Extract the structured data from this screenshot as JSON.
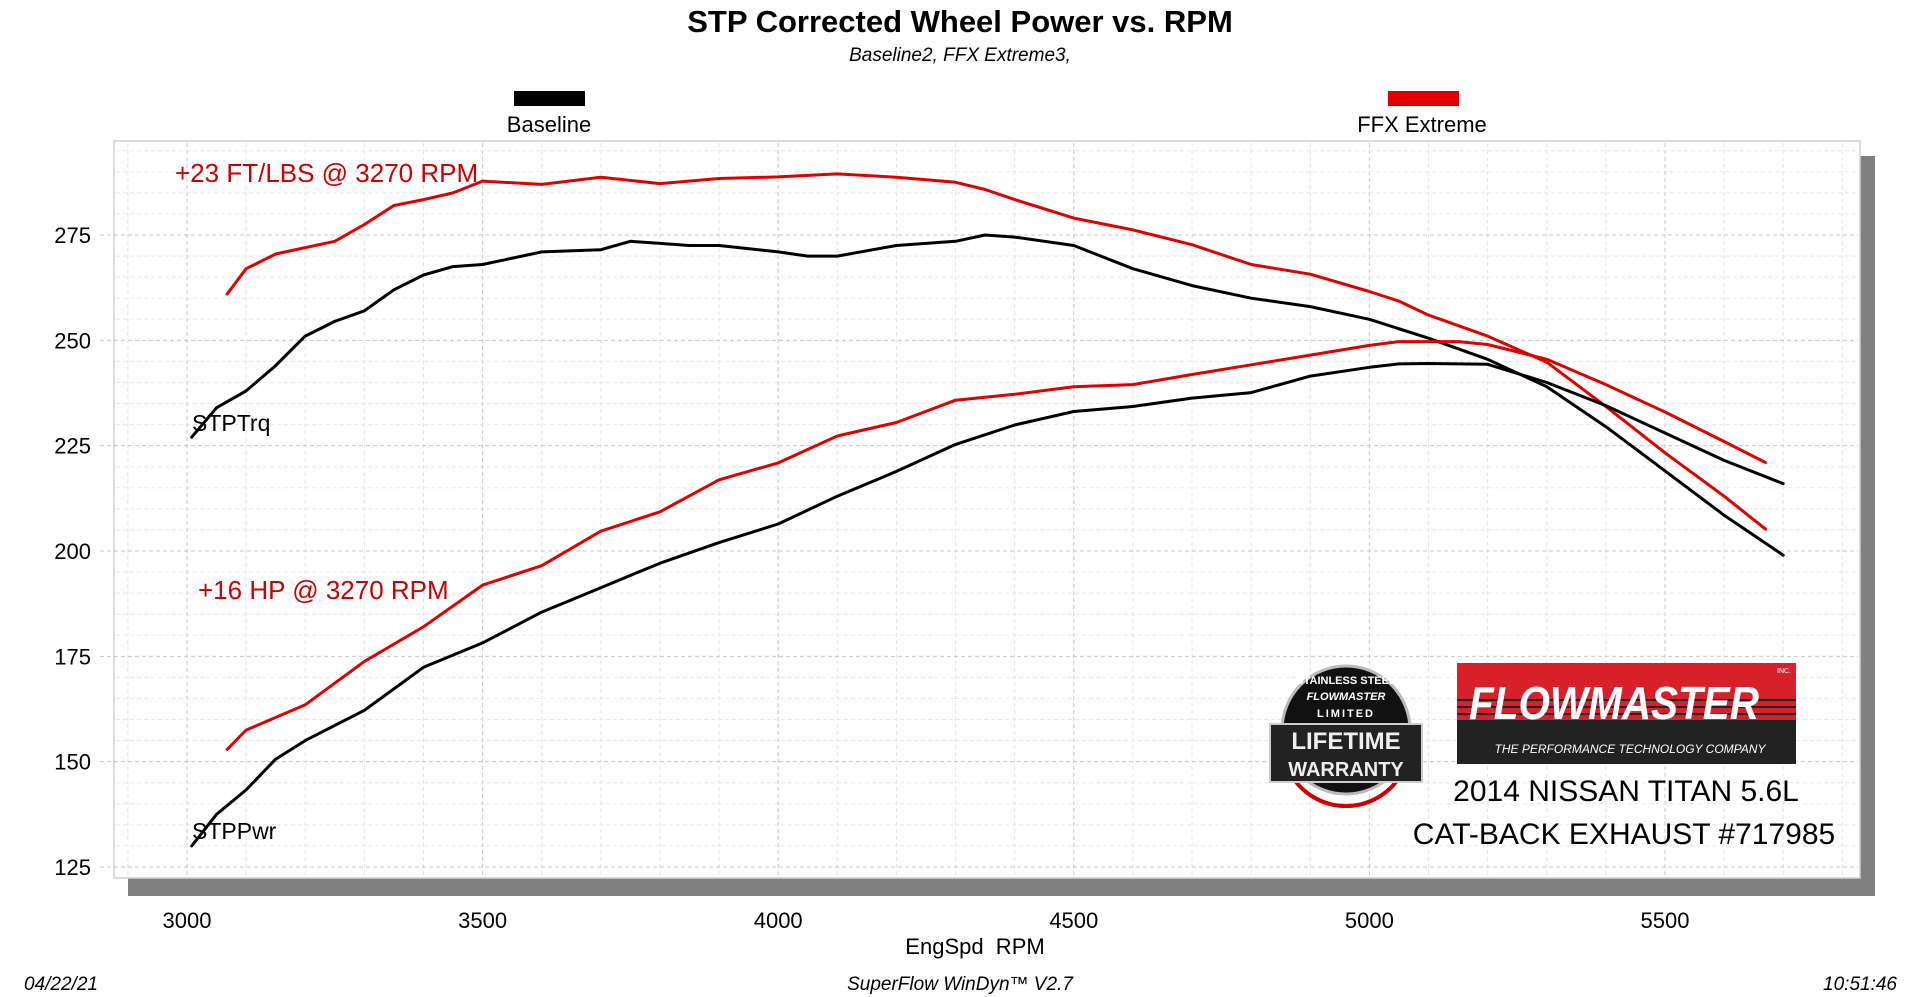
{
  "chart_data": {
    "type": "line",
    "title": "STP Corrected Wheel Power vs. RPM",
    "subtitle": "Baseline2, FFX Extreme3,",
    "xlabel": "EngSpd  RPM",
    "ylabel": "",
    "xlim": [
      2880,
      5850
    ],
    "ylim": [
      120,
      299
    ],
    "xticks": [
      3000,
      3500,
      4000,
      4500,
      5000,
      5500
    ],
    "yticks": [
      125,
      150,
      175,
      200,
      225,
      250,
      275
    ],
    "grid": true,
    "legend_placement": "top",
    "legend": [
      {
        "name": "Baseline",
        "color": "#000000"
      },
      {
        "name": "FFX Extreme",
        "color": "#e00000"
      }
    ],
    "curve_labels": {
      "torque": "STPTrq",
      "power": "STPPwr"
    },
    "series": [
      {
        "legend": "Baseline",
        "curve": "STPTrq",
        "color": "#000000",
        "x": [
          3008,
          3050,
          3100,
          3150,
          3200,
          3250,
          3300,
          3350,
          3400,
          3450,
          3500,
          3600,
          3700,
          3750,
          3800,
          3850,
          3900,
          4000,
          4050,
          4100,
          4200,
          4300,
          4350,
          4400,
          4500,
          4600,
          4700,
          4800,
          4900,
          5000,
          5100,
          5200,
          5300,
          5400,
          5500,
          5600,
          5700
        ],
        "y": [
          227,
          234,
          238,
          244,
          251,
          254.5,
          257,
          262,
          265.5,
          267.5,
          268,
          271,
          271.5,
          273.5,
          273,
          272.5,
          272.5,
          271,
          270,
          270,
          272.5,
          273.5,
          275,
          274.5,
          272.5,
          267,
          263,
          260,
          258,
          255,
          250.5,
          245.5,
          239,
          229.5,
          219,
          208.5,
          199
        ]
      },
      {
        "legend": "FFX Extreme",
        "curve": "STPTrq",
        "color": "#e00000",
        "x": [
          3068,
          3100,
          3150,
          3200,
          3250,
          3300,
          3350,
          3400,
          3450,
          3500,
          3600,
          3700,
          3800,
          3900,
          4000,
          4100,
          4200,
          4300,
          4350,
          4400,
          4500,
          4600,
          4700,
          4800,
          4900,
          5000,
          5050,
          5100,
          5200,
          5300,
          5400,
          5500,
          5600,
          5670
        ],
        "y": [
          261,
          267,
          270.5,
          272,
          273.5,
          277.5,
          282,
          283.4,
          285,
          287.8,
          287,
          288.7,
          287.2,
          288.4,
          288.8,
          289.5,
          288.7,
          287.5,
          285.8,
          283.4,
          279,
          276.2,
          272.7,
          268,
          265.7,
          261.6,
          259.3,
          256,
          251,
          244.8,
          234.3,
          223.3,
          213,
          205.2
        ]
      },
      {
        "legend": "Baseline",
        "curve": "STPPwr",
        "color": "#000000",
        "x": [
          3008,
          3050,
          3100,
          3150,
          3200,
          3300,
          3400,
          3500,
          3600,
          3700,
          3800,
          3900,
          4000,
          4100,
          4200,
          4300,
          4400,
          4500,
          4600,
          4700,
          4800,
          4900,
          5000,
          5050,
          5100,
          5200,
          5300,
          5400,
          5500,
          5600,
          5700
        ],
        "y": [
          130,
          137.5,
          143.3,
          150.6,
          155,
          162.2,
          172.4,
          178.2,
          185.5,
          191.3,
          197.1,
          202,
          206.4,
          213,
          218.9,
          225.3,
          229.9,
          233.1,
          234.3,
          236.3,
          237.6,
          241.5,
          243.6,
          244.4,
          244.5,
          244.3,
          240,
          234.5,
          228,
          221.5,
          216
        ]
      },
      {
        "legend": "FFX Extreme",
        "curve": "STPPwr",
        "color": "#e00000",
        "x": [
          3068,
          3100,
          3200,
          3300,
          3400,
          3500,
          3600,
          3700,
          3800,
          3900,
          4000,
          4100,
          4200,
          4300,
          4400,
          4500,
          4600,
          4700,
          4800,
          4900,
          5000,
          5050,
          5150,
          5200,
          5300,
          5400,
          5500,
          5600,
          5670
        ],
        "y": [
          152.9,
          157.5,
          163.5,
          173.8,
          182,
          191.9,
          196.5,
          204.7,
          209.3,
          216.9,
          220.9,
          227.3,
          230.5,
          235.8,
          237.2,
          239,
          239.5,
          241.9,
          244.2,
          246.5,
          248.8,
          249.7,
          249.7,
          249,
          245.5,
          239.5,
          233,
          226,
          221
        ]
      }
    ],
    "annotations": {
      "torque_gain": "+23 FT/LBS @ 3270 RPM",
      "power_gain": "+16 HP @ 3270 RPM",
      "annotation_color": "#cc0000"
    }
  },
  "branding": {
    "warranty_badge": {
      "arc_text": "STAINLESS STEEL",
      "brand": "FLOWMASTER",
      "line1": "LIMITED",
      "line2": "LIFETIME",
      "line3": "WARRANTY"
    },
    "logo": {
      "name": "FLOWMASTER",
      "inc": "INC.",
      "tagline": "THE PERFORMANCE TECHNOLOGY COMPANY"
    },
    "vehicle": "2014 NISSAN TITAN 5.6L",
    "product": "CAT-BACK EXHAUST #717985"
  },
  "footer": {
    "date": "04/22/21",
    "software": "SuperFlow WinDyn™ V2.7",
    "time": "10:51:46"
  }
}
